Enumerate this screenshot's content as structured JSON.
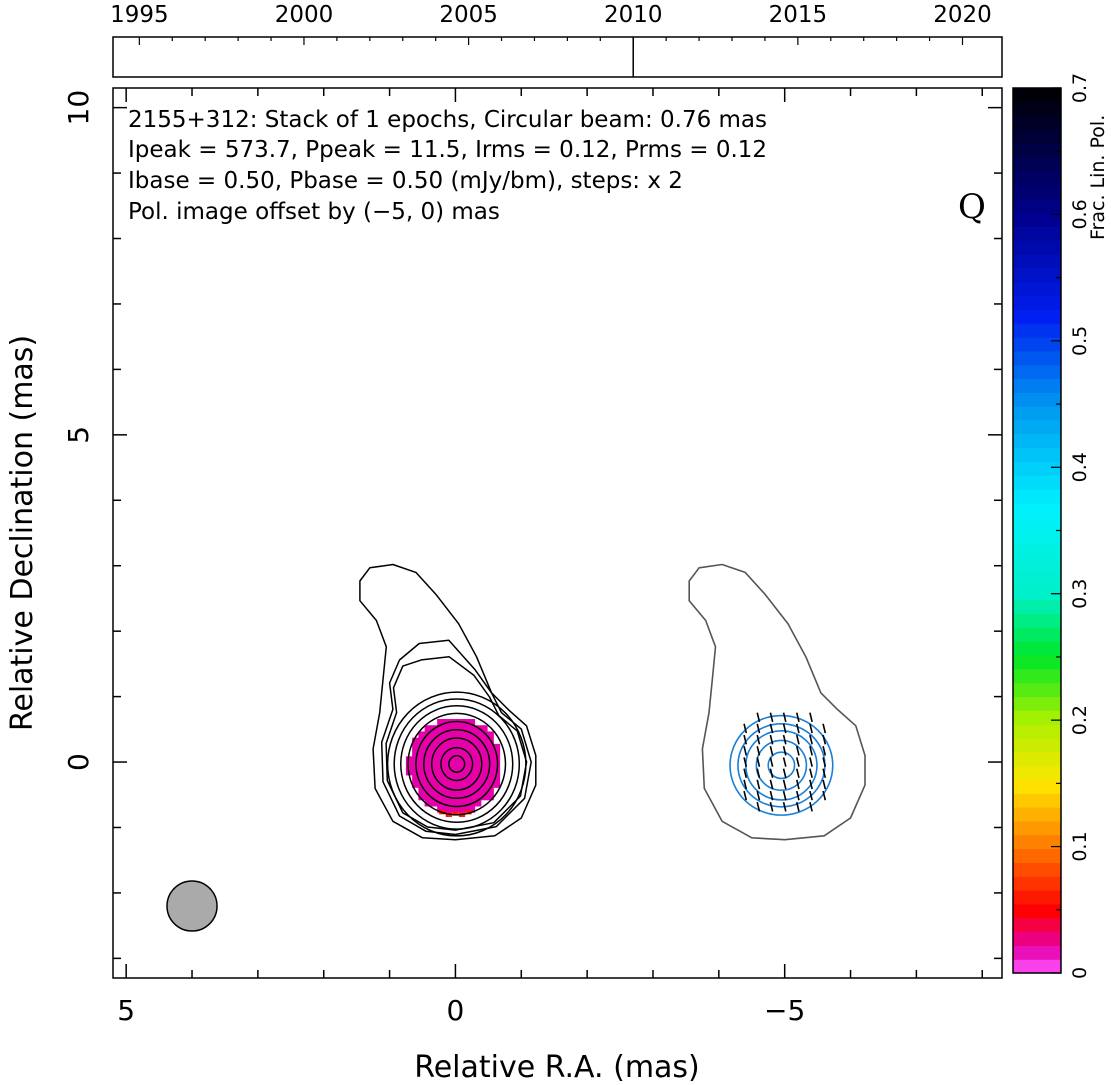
{
  "chart_data": {
    "type": "contour",
    "xlabel": "Relative R.A. (mas)",
    "ylabel": "Relative Declination (mas)",
    "xlim": [
      5.2,
      -8.3
    ],
    "ylim": [
      -3.3,
      10.3
    ],
    "x_ticks": [
      "5",
      "0",
      "−5"
    ],
    "x_tick_values": [
      5,
      0,
      -5
    ],
    "y_ticks": [
      "0",
      "5",
      "10"
    ],
    "y_tick_values": [
      0,
      5,
      10
    ],
    "annotations": {
      "line1": "2155+312: Stack of 1 epochs, Circular beam: 0.76 mas",
      "line2": "Ipeak = 573.7, Ppeak = 11.5, Irms = 0.12, Prms = 0.12",
      "line3": "Ibase = 0.50, Pbase = 0.50 (mJy/bm), steps: x 2",
      "line4": "Pol. image offset by (−5, 0) mas",
      "line4_color": "#1a7fd8",
      "quality_flag": "Q"
    },
    "beam": {
      "ra": 4.0,
      "dec": -2.2,
      "diameter_mas": 0.76,
      "color": "#aaaaaa"
    },
    "epoch_timeline": {
      "ticks": [
        "1995",
        "2000",
        "2005",
        "2010",
        "2015",
        "2020"
      ],
      "tick_values": [
        1995,
        2000,
        2005,
        2010,
        2015,
        2020
      ],
      "range": [
        1994.2,
        2021.2
      ],
      "epochs": [
        2010.0
      ]
    },
    "colorbar": {
      "label": "Frac. Lin. Pol.",
      "ticks": [
        "0",
        "0.1",
        "0.2",
        "0.3",
        "0.4",
        "0.5",
        "0.6",
        "0.7"
      ],
      "tick_values": [
        0,
        0.1,
        0.2,
        0.3,
        0.4,
        0.5,
        0.6,
        0.7
      ],
      "range": [
        0,
        0.7
      ]
    },
    "total_intensity_contours_mJy": [
      0.5,
      1,
      2,
      4,
      8,
      16,
      32,
      64,
      128,
      256
    ],
    "polarization_contours_mJy": [
      0.5,
      1,
      2,
      4,
      8
    ],
    "core_fractional_polarization": 0.02,
    "evpa_vector_color": "#000000",
    "pol_contour_color": "#1a7fd8",
    "total_intensity_outline_color": "#555555"
  }
}
